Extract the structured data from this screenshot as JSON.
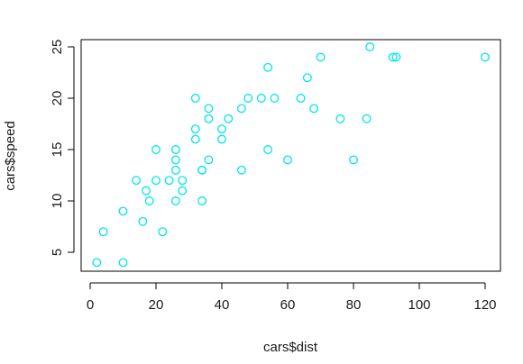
{
  "chart_data": {
    "type": "scatter",
    "title": "",
    "xlabel": "cars$dist",
    "ylabel": "cars$speed",
    "xlim": [
      0,
      120
    ],
    "ylim": [
      4,
      25
    ],
    "x_ticks": [
      0,
      20,
      40,
      60,
      80,
      100,
      120
    ],
    "y_ticks": [
      5,
      10,
      15,
      20,
      25
    ],
    "point_color": "#00e5ee",
    "grid": false,
    "legend": "none",
    "series": [
      {
        "name": "cars",
        "x": [
          2,
          10,
          4,
          22,
          16,
          10,
          18,
          26,
          34,
          17,
          28,
          14,
          20,
          24,
          28,
          26,
          34,
          34,
          46,
          26,
          36,
          60,
          80,
          20,
          26,
          54,
          32,
          40,
          32,
          40,
          42,
          36,
          76,
          84,
          36,
          46,
          68,
          32,
          48,
          52,
          56,
          64,
          66,
          54,
          70,
          92,
          93,
          120,
          85
        ],
        "y": [
          4,
          4,
          7,
          7,
          8,
          9,
          10,
          10,
          10,
          11,
          11,
          12,
          12,
          12,
          12,
          13,
          13,
          13,
          13,
          14,
          14,
          14,
          14,
          15,
          15,
          15,
          16,
          16,
          17,
          17,
          18,
          18,
          18,
          18,
          19,
          19,
          19,
          20,
          20,
          20,
          20,
          20,
          22,
          23,
          24,
          24,
          24,
          24,
          25
        ]
      }
    ]
  }
}
